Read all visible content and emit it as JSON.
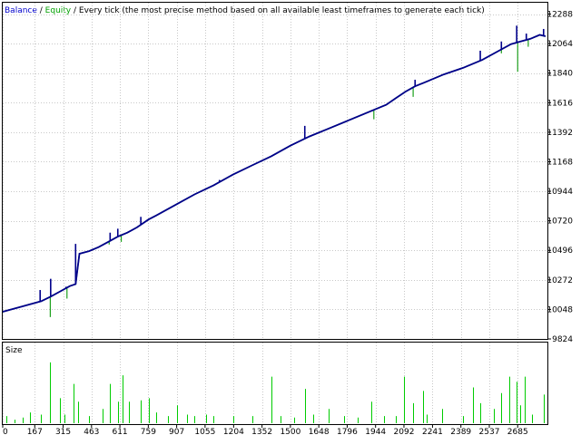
{
  "header": {
    "balance_label": "Balance",
    "sep1": " / ",
    "equity_label": "Equity",
    "sep2": " / ",
    "description": "Every tick (the most precise method based on all available least timeframes to generate each tick)"
  },
  "colors": {
    "balance": "#00008b",
    "equity": "#1ea01e",
    "size_bars": "#00cc00",
    "grid": "#c8c8c8",
    "frame": "#000000",
    "label_balance": "#0000cc",
    "label_equity": "#00a000"
  },
  "chart_data": [
    {
      "type": "line",
      "title": "",
      "x_ticks": [
        "0",
        "167",
        "315",
        "463",
        "611",
        "759",
        "907",
        "1055",
        "1204",
        "1352",
        "1500",
        "1648",
        "1796",
        "1944",
        "2092",
        "2241",
        "2389",
        "2537",
        "2685"
      ],
      "x_tick_values": [
        0,
        167,
        315,
        463,
        611,
        759,
        907,
        1055,
        1204,
        1352,
        1500,
        1648,
        1796,
        1944,
        2092,
        2241,
        2389,
        2537,
        2685
      ],
      "xlim": [
        0,
        2840
      ],
      "y_ticks": [
        "12288",
        "12064",
        "11840",
        "11616",
        "11392",
        "11168",
        "10944",
        "10720",
        "10496",
        "10272",
        "10048",
        "9824"
      ],
      "ylim": [
        9824,
        12374
      ],
      "grid": true,
      "series": [
        {
          "name": "Balance",
          "x": [
            0,
            100,
            200,
            250,
            300,
            350,
            380,
            400,
            450,
            500,
            550,
            600,
            650,
            700,
            760,
            800,
            900,
            1000,
            1100,
            1200,
            1300,
            1400,
            1500,
            1600,
            1700,
            1800,
            1900,
            2000,
            2050,
            2100,
            2150,
            2200,
            2300,
            2400,
            2500,
            2600,
            2650,
            2700,
            2750,
            2800,
            2830
          ],
          "values": [
            10030,
            10070,
            10110,
            10145,
            10185,
            10225,
            10240,
            10470,
            10490,
            10520,
            10560,
            10600,
            10630,
            10670,
            10730,
            10760,
            10840,
            10920,
            10990,
            11070,
            11140,
            11210,
            11290,
            11360,
            11420,
            11480,
            11540,
            11600,
            11650,
            11700,
            11740,
            11770,
            11830,
            11880,
            11940,
            12020,
            12060,
            12080,
            12100,
            12130,
            12120
          ]
        },
        {
          "name": "Equity",
          "x": [
            0,
            100,
            200,
            250,
            300,
            350,
            380,
            400,
            450,
            500,
            550,
            600,
            650,
            700,
            760,
            800,
            900,
            1000,
            1100,
            1200,
            1300,
            1400,
            1500,
            1600,
            1700,
            1800,
            1900,
            2000,
            2050,
            2100,
            2150,
            2200,
            2300,
            2400,
            2500,
            2600,
            2650,
            2700,
            2750,
            2800,
            2830
          ],
          "values": [
            10030,
            10070,
            10110,
            10145,
            10185,
            10225,
            10240,
            10470,
            10490,
            10520,
            10560,
            10600,
            10630,
            10670,
            10730,
            10760,
            10840,
            10920,
            10990,
            11070,
            11140,
            11210,
            11290,
            11360,
            11420,
            11480,
            11540,
            11600,
            11650,
            11700,
            11740,
            11770,
            11830,
            11880,
            11940,
            12020,
            12060,
            12080,
            12100,
            12130,
            12120
          ]
        }
      ],
      "balance_spikes": [
        {
          "x": 195,
          "to": 10195
        },
        {
          "x": 250,
          "to": 10280
        },
        {
          "x": 330,
          "to": 10220
        },
        {
          "x": 380,
          "to": 10545
        },
        {
          "x": 560,
          "to": 10630
        },
        {
          "x": 600,
          "to": 10660
        },
        {
          "x": 720,
          "to": 10750
        },
        {
          "x": 1130,
          "to": 11030
        },
        {
          "x": 1575,
          "to": 11440
        },
        {
          "x": 1930,
          "to": 11560
        },
        {
          "x": 2150,
          "to": 11790
        },
        {
          "x": 2490,
          "to": 12010
        },
        {
          "x": 2600,
          "to": 12080
        },
        {
          "x": 2680,
          "to": 12200
        },
        {
          "x": 2730,
          "to": 12140
        },
        {
          "x": 2820,
          "to": 12175
        }
      ],
      "equity_spikes": [
        {
          "x": 248,
          "to": 9990
        },
        {
          "x": 335,
          "to": 10130
        },
        {
          "x": 555,
          "to": 10540
        },
        {
          "x": 618,
          "to": 10560
        },
        {
          "x": 940,
          "to": 10870
        },
        {
          "x": 1575,
          "to": 11340
        },
        {
          "x": 1935,
          "to": 11490
        },
        {
          "x": 2140,
          "to": 11660
        },
        {
          "x": 2600,
          "to": 11990
        },
        {
          "x": 2685,
          "to": 11850
        },
        {
          "x": 2740,
          "to": 12040
        }
      ]
    },
    {
      "type": "bar",
      "title": "Size",
      "ylim": [
        0,
        1
      ],
      "bars": [
        {
          "x": 18,
          "v": 0.1
        },
        {
          "x": 60,
          "v": 0.05
        },
        {
          "x": 105,
          "v": 0.08
        },
        {
          "x": 140,
          "v": 0.15
        },
        {
          "x": 200,
          "v": 0.12
        },
        {
          "x": 248,
          "v": 0.85
        },
        {
          "x": 300,
          "v": 0.35
        },
        {
          "x": 320,
          "v": 0.12
        },
        {
          "x": 370,
          "v": 0.55
        },
        {
          "x": 395,
          "v": 0.3
        },
        {
          "x": 450,
          "v": 0.1
        },
        {
          "x": 520,
          "v": 0.2
        },
        {
          "x": 560,
          "v": 0.55
        },
        {
          "x": 600,
          "v": 0.3
        },
        {
          "x": 625,
          "v": 0.67
        },
        {
          "x": 660,
          "v": 0.3
        },
        {
          "x": 720,
          "v": 0.32
        },
        {
          "x": 760,
          "v": 0.35
        },
        {
          "x": 800,
          "v": 0.15
        },
        {
          "x": 860,
          "v": 0.1
        },
        {
          "x": 910,
          "v": 0.25
        },
        {
          "x": 960,
          "v": 0.12
        },
        {
          "x": 1000,
          "v": 0.1
        },
        {
          "x": 1060,
          "v": 0.12
        },
        {
          "x": 1100,
          "v": 0.1
        },
        {
          "x": 1200,
          "v": 0.1
        },
        {
          "x": 1300,
          "v": 0.1
        },
        {
          "x": 1400,
          "v": 0.65
        },
        {
          "x": 1450,
          "v": 0.1
        },
        {
          "x": 1520,
          "v": 0.08
        },
        {
          "x": 1575,
          "v": 0.48
        },
        {
          "x": 1620,
          "v": 0.12
        },
        {
          "x": 1700,
          "v": 0.2
        },
        {
          "x": 1780,
          "v": 0.1
        },
        {
          "x": 1850,
          "v": 0.08
        },
        {
          "x": 1920,
          "v": 0.3
        },
        {
          "x": 1990,
          "v": 0.1
        },
        {
          "x": 2050,
          "v": 0.1
        },
        {
          "x": 2090,
          "v": 0.65
        },
        {
          "x": 2140,
          "v": 0.28
        },
        {
          "x": 2190,
          "v": 0.45
        },
        {
          "x": 2210,
          "v": 0.12
        },
        {
          "x": 2290,
          "v": 0.2
        },
        {
          "x": 2400,
          "v": 0.1
        },
        {
          "x": 2450,
          "v": 0.5
        },
        {
          "x": 2490,
          "v": 0.28
        },
        {
          "x": 2560,
          "v": 0.2
        },
        {
          "x": 2600,
          "v": 0.42
        },
        {
          "x": 2640,
          "v": 0.65
        },
        {
          "x": 2680,
          "v": 0.58
        },
        {
          "x": 2700,
          "v": 0.25
        },
        {
          "x": 2720,
          "v": 0.65
        },
        {
          "x": 2760,
          "v": 0.12
        },
        {
          "x": 2820,
          "v": 0.4
        }
      ]
    }
  ]
}
